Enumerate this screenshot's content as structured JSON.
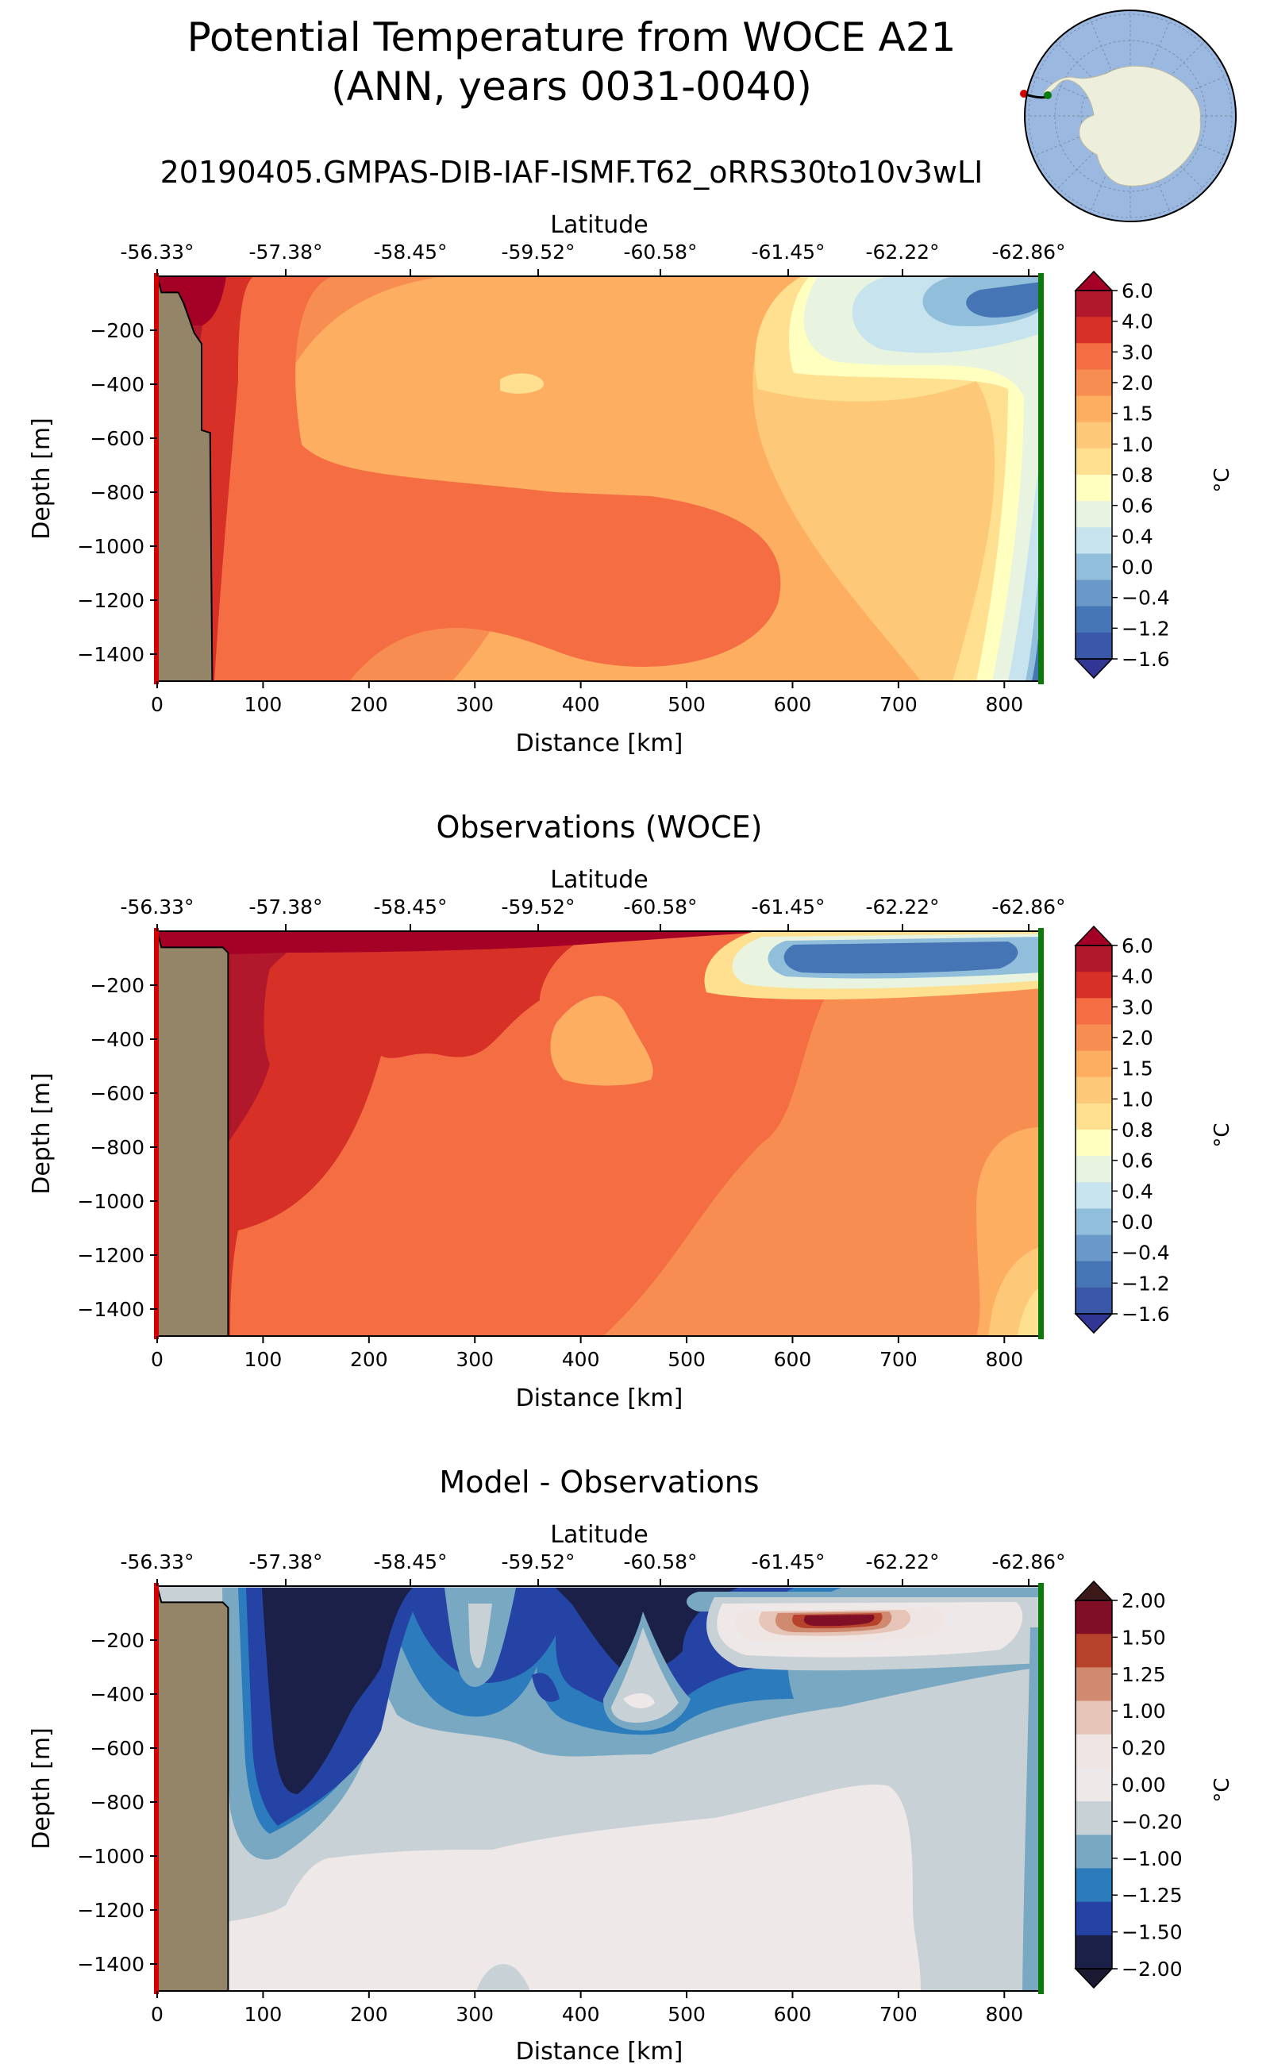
{
  "figure": {
    "title_line1": "Potential Temperature from WOCE A21",
    "title_line2": "(ANN, years 0031-0040)"
  },
  "colors": {
    "land": "#948468",
    "section_start": "#d40000",
    "section_end": "#0a7a0a",
    "ocean_map": "#9ab8e0",
    "continent_map": "#eeeedd"
  },
  "chart_data": [
    {
      "type": "contour",
      "panel_id": "model",
      "title": "20190405.GMPAS-DIB-IAF-ISMF.T62_oRRS30to10v3wLI",
      "xlabel": "Distance [km]",
      "ylabel": "Depth [m]",
      "top_axis_label": "Latitude",
      "xlim": [
        0,
        835
      ],
      "ylim": [
        -1500,
        0
      ],
      "x_ticks": [
        0,
        100,
        200,
        300,
        400,
        500,
        600,
        700,
        800
      ],
      "x_tick_labels": [
        "0",
        "100",
        "200",
        "300",
        "400",
        "500",
        "600",
        "700",
        "800"
      ],
      "y_ticks": [
        -200,
        -400,
        -600,
        -800,
        -1000,
        -1200,
        -1400
      ],
      "y_tick_labels": [
        "−200",
        "−400",
        "−600",
        "−800",
        "−1000",
        "−1200",
        "−1400"
      ],
      "lat_tick_labels": [
        "-56.33°",
        "-57.38°",
        "-58.45°",
        "-59.52°",
        "-60.58°",
        "-61.45°",
        "-62.22°",
        "-62.86°"
      ],
      "colorbar_label": "°C",
      "colorbar_levels": [
        "6.0",
        "4.0",
        "3.0",
        "2.0",
        "1.5",
        "1.0",
        "0.8",
        "0.6",
        "0.4",
        "0.0",
        "−0.4",
        "−1.2",
        "−1.6"
      ],
      "colorbar_colors": [
        "#b2182b",
        "#d73027",
        "#f46d43",
        "#f88d52",
        "#fdae61",
        "#fdc877",
        "#fee090",
        "#ffffbf",
        "#e8f4e0",
        "#c6e3ee",
        "#91bfdb",
        "#6a98c8",
        "#4575b4",
        "#3b58a8"
      ],
      "colorbar_extend_colors": [
        "#a50026",
        "#313695"
      ],
      "land_outline_km": [
        [
          0,
          0
        ],
        [
          4,
          -60
        ],
        [
          20,
          -60
        ],
        [
          25,
          -100
        ],
        [
          35,
          -210
        ],
        [
          42,
          -250
        ],
        [
          42,
          -570
        ],
        [
          50,
          -580
        ],
        [
          52,
          -1500
        ],
        [
          0,
          -1500
        ]
      ]
    },
    {
      "type": "contour",
      "panel_id": "obs",
      "title": "Observations (WOCE)",
      "xlabel": "Distance [km]",
      "ylabel": "Depth [m]",
      "top_axis_label": "Latitude",
      "xlim": [
        0,
        835
      ],
      "ylim": [
        -1500,
        0
      ],
      "x_ticks": [
        0,
        100,
        200,
        300,
        400,
        500,
        600,
        700,
        800
      ],
      "x_tick_labels": [
        "0",
        "100",
        "200",
        "300",
        "400",
        "500",
        "600",
        "700",
        "800"
      ],
      "y_ticks": [
        -200,
        -400,
        -600,
        -800,
        -1000,
        -1200,
        -1400
      ],
      "y_tick_labels": [
        "−200",
        "−400",
        "−600",
        "−800",
        "−1000",
        "−1200",
        "−1400"
      ],
      "lat_tick_labels": [
        "-56.33°",
        "-57.38°",
        "-58.45°",
        "-59.52°",
        "-60.58°",
        "-61.45°",
        "-62.22°",
        "-62.86°"
      ],
      "colorbar_label": "°C",
      "colorbar_levels": [
        "6.0",
        "4.0",
        "3.0",
        "2.0",
        "1.5",
        "1.0",
        "0.8",
        "0.6",
        "0.4",
        "0.0",
        "−0.4",
        "−1.2",
        "−1.6"
      ],
      "colorbar_colors": [
        "#b2182b",
        "#d73027",
        "#f46d43",
        "#f88d52",
        "#fdae61",
        "#fdc877",
        "#fee090",
        "#ffffbf",
        "#e8f4e0",
        "#c6e3ee",
        "#91bfdb",
        "#6a98c8",
        "#4575b4",
        "#3b58a8"
      ],
      "colorbar_extend_colors": [
        "#a50026",
        "#313695"
      ],
      "land_outline_km": [
        [
          0,
          0
        ],
        [
          4,
          -60
        ],
        [
          62,
          -60
        ],
        [
          67,
          -80
        ],
        [
          67,
          -1500
        ],
        [
          0,
          -1500
        ]
      ]
    },
    {
      "type": "contour",
      "panel_id": "diff",
      "title": "Model - Observations",
      "xlabel": "Distance [km]",
      "ylabel": "Depth [m]",
      "top_axis_label": "Latitude",
      "xlim": [
        0,
        835
      ],
      "ylim": [
        -1500,
        0
      ],
      "x_ticks": [
        0,
        100,
        200,
        300,
        400,
        500,
        600,
        700,
        800
      ],
      "x_tick_labels": [
        "0",
        "100",
        "200",
        "300",
        "400",
        "500",
        "600",
        "700",
        "800"
      ],
      "y_ticks": [
        -200,
        -400,
        -600,
        -800,
        -1000,
        -1200,
        -1400
      ],
      "y_tick_labels": [
        "−200",
        "−400",
        "−600",
        "−800",
        "−1000",
        "−1200",
        "−1400"
      ],
      "lat_tick_labels": [
        "-56.33°",
        "-57.38°",
        "-58.45°",
        "-59.52°",
        "-60.58°",
        "-61.45°",
        "-62.22°",
        "-62.86°"
      ],
      "colorbar_label": "°C",
      "colorbar_levels": [
        "2.00",
        "1.50",
        "1.25",
        "1.00",
        "0.20",
        "0.00",
        "−0.20",
        "−1.00",
        "−1.25",
        "−1.50",
        "−2.00"
      ],
      "colorbar_colors": [
        "#800f26",
        "#b8432d",
        "#d08a70",
        "#e6c4b8",
        "#efe5e2",
        "#efe8e8",
        "#c8d1d6",
        "#79a8c2",
        "#2c7bbd",
        "#2543a5",
        "#1a2047"
      ],
      "colorbar_extend_colors": [
        "#3d1a1a",
        "#1a1a33"
      ],
      "land_outline_km": [
        [
          0,
          0
        ],
        [
          4,
          -60
        ],
        [
          62,
          -60
        ],
        [
          67,
          -80
        ],
        [
          67,
          -1500
        ],
        [
          0,
          -1500
        ]
      ]
    }
  ]
}
